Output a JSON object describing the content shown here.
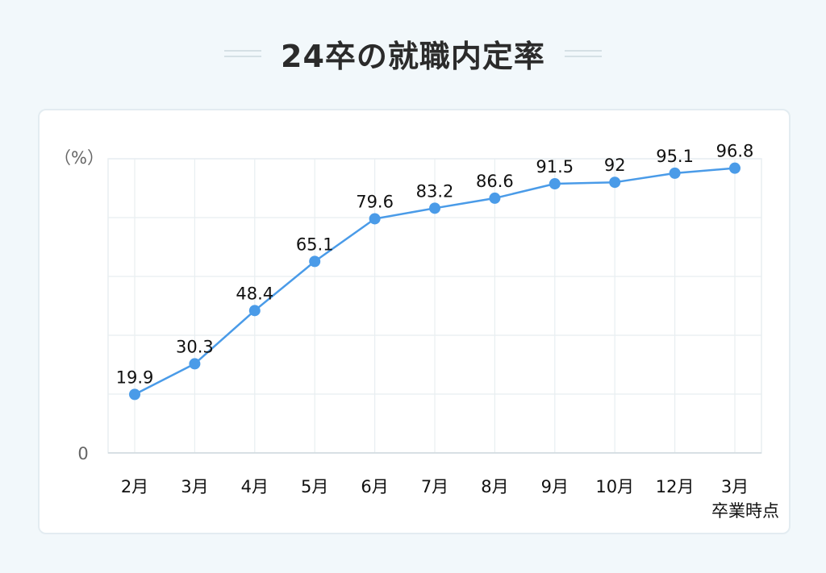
{
  "title": "24卒の就職内定率",
  "chart_data": {
    "type": "line",
    "title": "24卒の就職内定率",
    "ylabel": "（%）",
    "y_zero_label": "0",
    "categories": [
      "2月",
      "3月",
      "4月",
      "5月",
      "6月",
      "7月",
      "8月",
      "9月",
      "10月",
      "12月",
      "3月"
    ],
    "category_note": "卒業時点",
    "values": [
      19.9,
      30.3,
      48.4,
      65.1,
      79.6,
      83.2,
      86.6,
      91.5,
      92,
      95.1,
      96.8
    ],
    "value_labels": [
      "19.9",
      "30.3",
      "48.4",
      "65.1",
      "79.6",
      "83.2",
      "86.6",
      "91.5",
      "92",
      "95.1",
      "96.8"
    ],
    "ylim": [
      0,
      100
    ],
    "grid": true,
    "legend": "none",
    "colors": {
      "line": "#4a9be8",
      "grid": "#e8eef1"
    }
  }
}
